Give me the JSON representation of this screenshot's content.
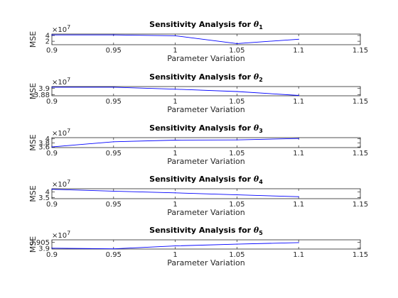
{
  "chart_data": [
    {
      "type": "line",
      "title": "Sensitivity Analysis for",
      "symbol": "θ",
      "subscript": "1",
      "xlabel": "Parameter Variation",
      "ylabel": "MSE",
      "exponent_label": "×10",
      "exponent": "7",
      "xlim": [
        0.9,
        1.15
      ],
      "ylim": [
        0.8,
        4.5
      ],
      "xticks": [
        "0.9",
        "0.95",
        "1",
        "1.05",
        "1.1",
        "1.15"
      ],
      "yticks": [
        {
          "value": 2,
          "label": "2"
        },
        {
          "value": 4,
          "label": "4"
        }
      ],
      "x": [
        0.9,
        0.95,
        1.0,
        1.05,
        1.1
      ],
      "values": [
        4.2,
        4.2,
        3.9,
        1.2,
        2.7
      ],
      "line_color": "#0000ff"
    },
    {
      "type": "line",
      "title": "Sensitivity Analysis for",
      "symbol": "θ",
      "subscript": "2",
      "xlabel": "Parameter Variation",
      "ylabel": "MSE",
      "exponent_label": "×10",
      "exponent": "7",
      "xlim": [
        0.9,
        1.15
      ],
      "ylim": [
        3.877,
        3.905
      ],
      "xticks": [
        "0.9",
        "0.95",
        "1",
        "1.05",
        "1.1",
        "1.15"
      ],
      "yticks": [
        {
          "value": 3.88,
          "label": "3.88"
        },
        {
          "value": 3.9,
          "label": "3.9"
        }
      ],
      "x": [
        0.9,
        0.95,
        1.0,
        1.05,
        1.1
      ],
      "values": [
        3.903,
        3.903,
        3.897,
        3.89,
        3.878
      ],
      "line_color": "#0000ff"
    },
    {
      "type": "line",
      "title": "Sensitivity Analysis for",
      "symbol": "θ",
      "subscript": "3",
      "xlabel": "Parameter Variation",
      "ylabel": "MSE",
      "exponent_label": "×10",
      "exponent": "7",
      "xlim": [
        0.9,
        1.15
      ],
      "ylim": [
        3.57,
        4.05
      ],
      "xticks": [
        "0.9",
        "0.95",
        "1",
        "1.05",
        "1.1",
        "1.15"
      ],
      "yticks": [
        {
          "value": 3.6,
          "label": "3.6"
        },
        {
          "value": 3.8,
          "label": "3.8"
        },
        {
          "value": 4,
          "label": "4"
        }
      ],
      "x": [
        0.9,
        0.95,
        1.0,
        1.05,
        1.1
      ],
      "values": [
        3.6,
        3.85,
        3.93,
        3.94,
        4.01
      ],
      "line_color": "#0000ff"
    },
    {
      "type": "line",
      "title": "Sensitivity Analysis for",
      "symbol": "θ",
      "subscript": "4",
      "xlabel": "Parameter Variation",
      "ylabel": "MSE",
      "exponent_label": "×10",
      "exponent": "7",
      "xlim": [
        0.9,
        1.15
      ],
      "ylim": [
        3.4,
        4.3
      ],
      "xticks": [
        "0.9",
        "0.95",
        "1",
        "1.05",
        "1.1",
        "1.15"
      ],
      "yticks": [
        {
          "value": 3.5,
          "label": "3.5"
        },
        {
          "value": 4,
          "label": "4"
        }
      ],
      "x": [
        0.9,
        0.95,
        1.0,
        1.05,
        1.1
      ],
      "values": [
        4.25,
        4.08,
        3.93,
        3.75,
        3.58
      ],
      "line_color": "#0000ff"
    },
    {
      "type": "line",
      "title": "Sensitivity Analysis for",
      "symbol": "θ",
      "subscript": "5",
      "xlabel": "Parameter Variation",
      "ylabel": "MSE",
      "exponent_label": "×10",
      "exponent": "7",
      "xlim": [
        0.9,
        1.15
      ],
      "ylim": [
        3.8993,
        3.9072
      ],
      "xticks": [
        "0.9",
        "0.95",
        "1",
        "1.05",
        "1.1",
        "1.15"
      ],
      "yticks": [
        {
          "value": 3.9,
          "label": "3.9"
        },
        {
          "value": 3.905,
          "label": "3.905"
        }
      ],
      "x": [
        0.9,
        0.95,
        1.0,
        1.05,
        1.1
      ],
      "values": [
        3.9,
        3.8995,
        3.902,
        3.9035,
        3.9048
      ],
      "line_color": "#0000ff"
    }
  ]
}
